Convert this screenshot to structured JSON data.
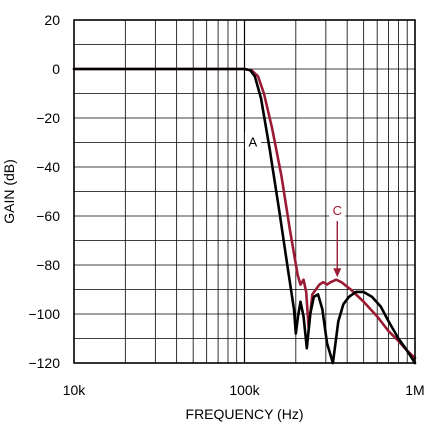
{
  "chart_data": {
    "type": "line",
    "title": "",
    "xlabel": "FREQUENCY (Hz)",
    "ylabel": "GAIN (dB)",
    "x_scale": "log",
    "xlim": [
      10000,
      1000000
    ],
    "ylim": [
      -120,
      20
    ],
    "x_ticks": [
      {
        "value": 10000,
        "label": "10k"
      },
      {
        "value": 100000,
        "label": "100k"
      },
      {
        "value": 1000000,
        "label": "1M"
      }
    ],
    "y_ticks": [
      {
        "value": 20,
        "label": "20"
      },
      {
        "value": 0,
        "label": "0"
      },
      {
        "value": -20,
        "label": "−20"
      },
      {
        "value": -40,
        "label": "−40"
      },
      {
        "value": -60,
        "label": "−60"
      },
      {
        "value": -80,
        "label": "−80"
      },
      {
        "value": -100,
        "label": "−100"
      },
      {
        "value": -120,
        "label": "−120"
      }
    ],
    "grid": true,
    "series": [
      {
        "label": "A",
        "color": "#000000",
        "x": [
          10000,
          50000,
          100000,
          108000,
          115000,
          125000,
          140000,
          160000,
          180000,
          195000,
          200000,
          206000,
          213000,
          222000,
          232000,
          243000,
          255000,
          270000,
          286000,
          305000,
          330000,
          355000,
          380000,
          410000,
          450000,
          500000,
          560000,
          630000,
          700000,
          800000,
          900000,
          1000000
        ],
        "y": [
          0,
          0,
          0,
          -0.5,
          -3,
          -12,
          -32,
          -58,
          -82,
          -98,
          -108,
          -101,
          -95,
          -101,
          -114,
          -100,
          -93,
          -92,
          -98,
          -112,
          -120,
          -103,
          -96,
          -93,
          -91,
          -91,
          -93,
          -97,
          -103,
          -110,
          -115,
          -120
        ]
      },
      {
        "label": "C",
        "color": "#9a1b34",
        "x": [
          10000,
          50000,
          100000,
          110000,
          120000,
          130000,
          145000,
          165000,
          185000,
          205000,
          213000,
          222000,
          230000,
          238000,
          250000,
          262000,
          275000,
          290000,
          305000,
          320000,
          345000,
          370000,
          420000,
          500000,
          600000,
          700000,
          800000,
          900000,
          1000000
        ],
        "y": [
          0,
          0,
          0,
          -0.5,
          -3,
          -10,
          -24,
          -44,
          -66,
          -84,
          -88,
          -86,
          -91,
          -106,
          -92,
          -90,
          -88,
          -87,
          -88,
          -87,
          -86,
          -87,
          -90,
          -95,
          -101,
          -107,
          -111,
          -115,
          -118
        ]
      }
    ],
    "annotations": [
      {
        "text": "A",
        "x": 112000,
        "y": -30,
        "arrow": false
      },
      {
        "text": "C",
        "x": 350000,
        "y": -58,
        "arrow": true,
        "arrow_to_y": -85
      }
    ]
  }
}
